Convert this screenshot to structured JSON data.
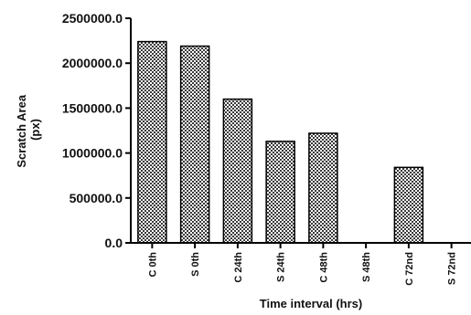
{
  "chart_data": {
    "type": "bar",
    "categories": [
      "C 0th",
      "S 0th",
      "C 24th",
      "S 24th",
      "C 48th",
      "S 48th",
      "C 72nd",
      "S 72nd"
    ],
    "values": [
      2240000,
      2190000,
      1600000,
      1130000,
      1220000,
      0,
      840000,
      0
    ],
    "xlabel": "Time interval (hrs)",
    "ylabel_lines": [
      "Scratch Area",
      "(px)"
    ],
    "ylim": [
      0,
      2500000
    ],
    "yticks": [
      0,
      500000,
      1000000,
      1500000,
      2000000,
      2500000
    ],
    "ytick_labels": [
      "0.0",
      "500000.0",
      "1000000.0",
      "1500000.0",
      "2000000.0",
      "2500000.0"
    ],
    "grid": false,
    "bar_fill": "checkered",
    "colors": {
      "axis": "#000000",
      "bar_outline": "#000000",
      "pattern_dark": "#3a3a3a",
      "pattern_light": "#ffffff"
    }
  }
}
